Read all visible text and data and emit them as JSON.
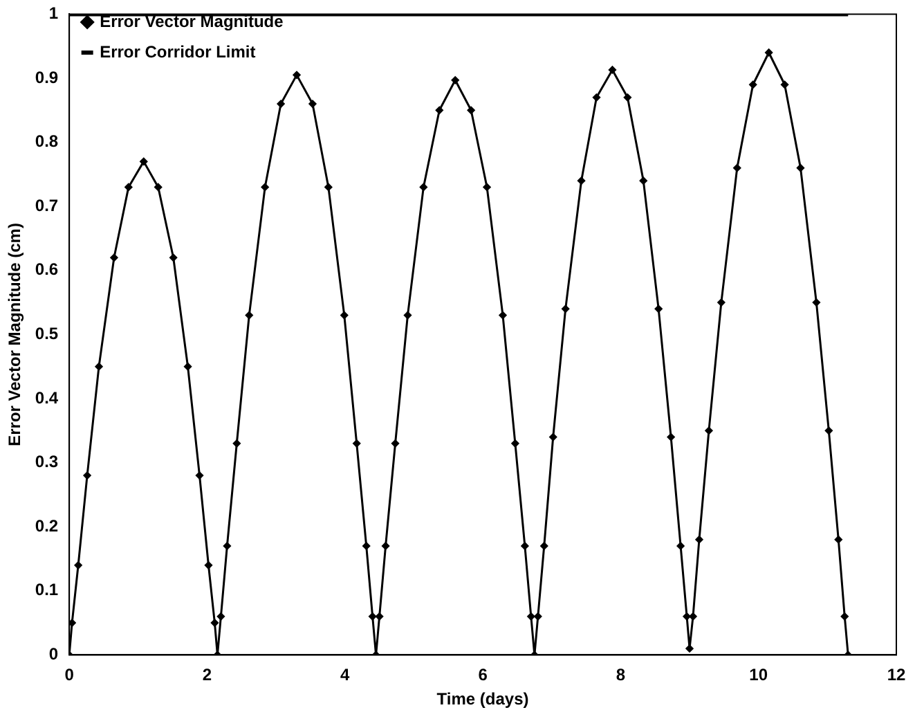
{
  "chart_data": {
    "type": "line",
    "xlabel": "Time (days)",
    "ylabel": "Error Vector Magnitude (cm)",
    "xlim": [
      0,
      12
    ],
    "xticks": [
      0,
      2,
      4,
      6,
      8,
      10,
      12
    ],
    "ylim": [
      0,
      1
    ],
    "yticks": [
      0,
      0.1,
      0.2,
      0.3,
      0.4,
      0.5,
      0.6,
      0.7,
      0.8,
      0.9,
      1
    ],
    "grid": false,
    "legend": "top left",
    "line_style": "solid",
    "series": [
      {
        "name": "Error Vector Magnitude",
        "color": "#000000",
        "marker": "diamond",
        "x": [
          0,
          0.04,
          0.13,
          0.26,
          0.43,
          0.65,
          0.86,
          1.08,
          1.29,
          1.51,
          1.72,
          1.89,
          2.02,
          2.11,
          2.15,
          2.2,
          2.29,
          2.43,
          2.61,
          2.84,
          3.07,
          3.3,
          3.53,
          3.76,
          3.99,
          4.17,
          4.31,
          4.4,
          4.45,
          4.5,
          4.59,
          4.73,
          4.91,
          5.14,
          5.37,
          5.6,
          5.83,
          6.06,
          6.29,
          6.47,
          6.61,
          6.7,
          6.75,
          6.8,
          6.89,
          7.02,
          7.2,
          7.43,
          7.65,
          7.88,
          8.1,
          8.33,
          8.55,
          8.73,
          8.87,
          8.96,
          9.0,
          9.05,
          9.14,
          9.28,
          9.46,
          9.69,
          9.92,
          10.15,
          10.38,
          10.61,
          10.84,
          11.02,
          11.16,
          11.25,
          11.3
        ],
        "values": [
          0,
          0.05,
          0.14,
          0.28,
          0.45,
          0.62,
          0.73,
          0.77,
          0.73,
          0.62,
          0.45,
          0.28,
          0.14,
          0.05,
          0,
          0.06,
          0.17,
          0.33,
          0.53,
          0.73,
          0.86,
          0.905,
          0.86,
          0.73,
          0.53,
          0.33,
          0.17,
          0.06,
          0,
          0.06,
          0.17,
          0.33,
          0.53,
          0.73,
          0.85,
          0.897,
          0.85,
          0.73,
          0.53,
          0.33,
          0.17,
          0.06,
          0,
          0.06,
          0.17,
          0.34,
          0.54,
          0.74,
          0.87,
          0.913,
          0.87,
          0.74,
          0.54,
          0.34,
          0.17,
          0.06,
          0.01,
          0.06,
          0.18,
          0.35,
          0.55,
          0.76,
          0.89,
          0.94,
          0.89,
          0.76,
          0.55,
          0.35,
          0.18,
          0.06,
          0
        ]
      },
      {
        "name": "Error Corridor Limit",
        "color": "#000000",
        "marker": "none",
        "x": [
          0,
          11.3
        ],
        "values": [
          1,
          1
        ]
      }
    ]
  }
}
